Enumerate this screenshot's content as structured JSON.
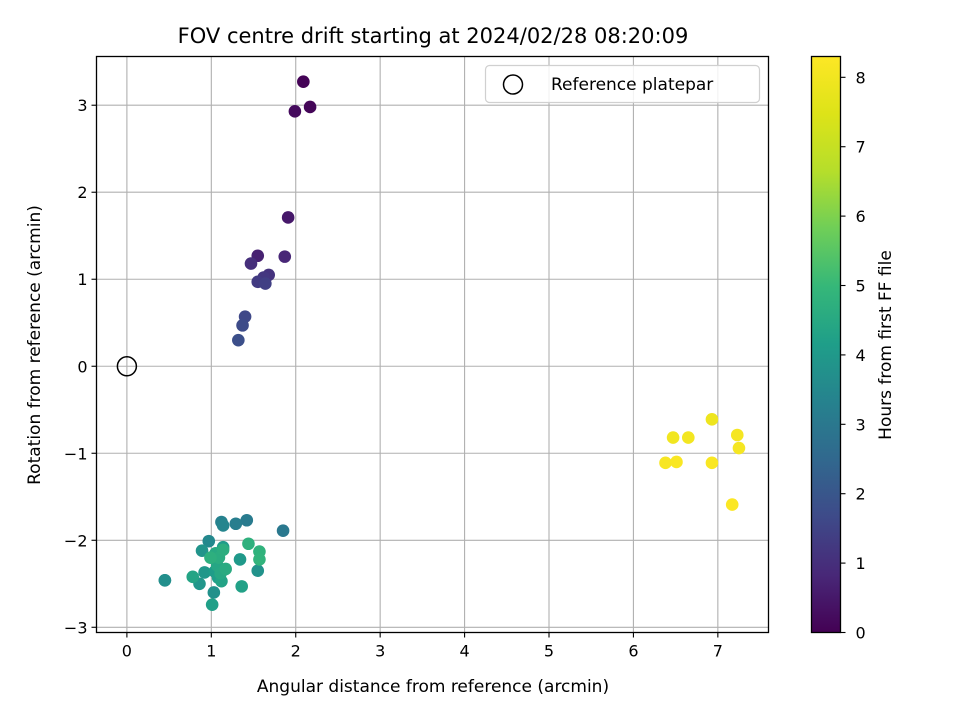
{
  "chart_data": {
    "type": "scatter",
    "title": "FOV centre drift starting at 2024/02/28 08:20:09",
    "xlabel": "Angular distance from reference (arcmin)",
    "ylabel": "Rotation from reference (arcmin)",
    "xlim": [
      -0.36,
      7.6
    ],
    "ylim": [
      -3.06,
      3.56
    ],
    "xticks": [
      0,
      1,
      2,
      3,
      4,
      5,
      6,
      7
    ],
    "yticks": [
      -3,
      -2,
      -1,
      0,
      1,
      2,
      3
    ],
    "xtick_labels": [
      "0",
      "1",
      "2",
      "3",
      "4",
      "5",
      "6",
      "7"
    ],
    "ytick_labels": [
      "−3",
      "−2",
      "−1",
      "0",
      "1",
      "2",
      "3"
    ],
    "grid": true,
    "legend_position": "top-right",
    "reference": {
      "label": "Reference platepar",
      "x": 0,
      "y": 0
    },
    "colorbar": {
      "label": "Hours from first FF file",
      "min": 0,
      "max": 8.3,
      "ticks": [
        0,
        1,
        2,
        3,
        4,
        5,
        6,
        7,
        8
      ],
      "tick_labels": [
        "0",
        "1",
        "2",
        "3",
        "4",
        "5",
        "6",
        "7",
        "8"
      ],
      "colormap": "viridis"
    },
    "points": [
      {
        "x": 2.09,
        "y": 3.27,
        "c": 0.05
      },
      {
        "x": 2.17,
        "y": 2.98,
        "c": 0.1
      },
      {
        "x": 1.99,
        "y": 2.93,
        "c": 0.2
      },
      {
        "x": 1.91,
        "y": 1.71,
        "c": 0.5
      },
      {
        "x": 1.55,
        "y": 1.27,
        "c": 0.7
      },
      {
        "x": 1.87,
        "y": 1.26,
        "c": 0.8
      },
      {
        "x": 1.47,
        "y": 1.18,
        "c": 1.0
      },
      {
        "x": 1.68,
        "y": 1.05,
        "c": 1.1
      },
      {
        "x": 1.62,
        "y": 1.02,
        "c": 1.2
      },
      {
        "x": 1.55,
        "y": 0.97,
        "c": 1.3
      },
      {
        "x": 1.64,
        "y": 0.95,
        "c": 1.4
      },
      {
        "x": 1.4,
        "y": 0.57,
        "c": 1.6
      },
      {
        "x": 1.37,
        "y": 0.47,
        "c": 1.7
      },
      {
        "x": 1.32,
        "y": 0.3,
        "c": 1.8
      },
      {
        "x": 1.85,
        "y": -1.89,
        "c": 3.0
      },
      {
        "x": 1.42,
        "y": -1.77,
        "c": 3.1
      },
      {
        "x": 1.29,
        "y": -1.81,
        "c": 3.2
      },
      {
        "x": 1.12,
        "y": -1.79,
        "c": 3.3
      },
      {
        "x": 1.14,
        "y": -1.83,
        "c": 3.4
      },
      {
        "x": 0.97,
        "y": -2.01,
        "c": 3.5
      },
      {
        "x": 0.45,
        "y": -2.46,
        "c": 3.6
      },
      {
        "x": 0.45,
        "y": -2.46,
        "c": 3.7
      },
      {
        "x": 1.03,
        "y": -2.6,
        "c": 3.75
      },
      {
        "x": 1.55,
        "y": -2.35,
        "c": 3.8
      },
      {
        "x": 0.89,
        "y": -2.12,
        "c": 3.85
      },
      {
        "x": 0.86,
        "y": -2.5,
        "c": 3.9
      },
      {
        "x": 0.92,
        "y": -2.37,
        "c": 3.95
      },
      {
        "x": 1.34,
        "y": -2.22,
        "c": 4.0
      },
      {
        "x": 1.14,
        "y": -2.08,
        "c": 4.05
      },
      {
        "x": 1.04,
        "y": -2.36,
        "c": 4.1
      },
      {
        "x": 1.08,
        "y": -2.43,
        "c": 4.15
      },
      {
        "x": 1.01,
        "y": -2.74,
        "c": 4.2
      },
      {
        "x": 1.36,
        "y": -2.53,
        "c": 4.25
      },
      {
        "x": 1.12,
        "y": -2.47,
        "c": 4.3
      },
      {
        "x": 0.78,
        "y": -2.42,
        "c": 4.35
      },
      {
        "x": 1.07,
        "y": -2.29,
        "c": 4.4
      },
      {
        "x": 1.11,
        "y": -2.38,
        "c": 4.45
      },
      {
        "x": 1.05,
        "y": -2.15,
        "c": 4.5
      },
      {
        "x": 1.17,
        "y": -2.33,
        "c": 4.55
      },
      {
        "x": 1.09,
        "y": -2.2,
        "c": 4.6
      },
      {
        "x": 1.14,
        "y": -2.11,
        "c": 4.65
      },
      {
        "x": 0.99,
        "y": -2.2,
        "c": 4.7
      },
      {
        "x": 1.44,
        "y": -2.04,
        "c": 4.75
      },
      {
        "x": 1.57,
        "y": -2.13,
        "c": 4.8
      },
      {
        "x": 1.57,
        "y": -2.22,
        "c": 4.85
      },
      {
        "x": 6.93,
        "y": -0.61,
        "c": 7.9
      },
      {
        "x": 6.47,
        "y": -0.82,
        "c": 8.0
      },
      {
        "x": 6.65,
        "y": -0.82,
        "c": 8.05
      },
      {
        "x": 7.23,
        "y": -0.79,
        "c": 8.1
      },
      {
        "x": 7.25,
        "y": -0.94,
        "c": 8.1
      },
      {
        "x": 6.38,
        "y": -1.11,
        "c": 8.15
      },
      {
        "x": 6.51,
        "y": -1.1,
        "c": 8.2
      },
      {
        "x": 6.93,
        "y": -1.11,
        "c": 8.2
      },
      {
        "x": 7.17,
        "y": -1.59,
        "c": 8.25
      }
    ]
  }
}
